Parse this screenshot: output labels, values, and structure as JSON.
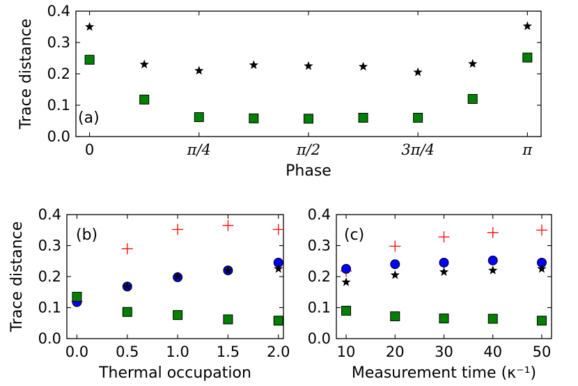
{
  "chart_data": [
    {
      "type": "scatter",
      "panel_label": "(a)",
      "xlabel": "Phase",
      "ylabel": "Trace distance",
      "ylim": [
        0.0,
        0.4
      ],
      "yticks": [
        "0.0",
        "0.1",
        "0.2",
        "0.3",
        "0.4"
      ],
      "xlim": [
        -0.098,
        3.24
      ],
      "xtick_values": [
        0,
        0.7854,
        1.5708,
        2.3562,
        3.1416
      ],
      "xticks": [
        "0",
        "π/4",
        "π/2",
        "3π/4",
        "π"
      ],
      "x": [
        0,
        0.3927,
        0.7854,
        1.1781,
        1.5708,
        1.9635,
        2.3562,
        2.7489,
        3.1416
      ],
      "series": [
        {
          "marker": "star",
          "color": "#000000",
          "values": [
            0.35,
            0.23,
            0.21,
            0.228,
            0.225,
            0.223,
            0.205,
            0.232,
            0.352
          ]
        },
        {
          "marker": "square",
          "color": "#008000",
          "values": [
            0.245,
            0.118,
            0.062,
            0.058,
            0.057,
            0.06,
            0.06,
            0.12,
            0.252
          ]
        }
      ],
      "grid": false
    },
    {
      "type": "scatter",
      "panel_label": "(b)",
      "xlabel": "Thermal occupation",
      "ylabel": "Trace distance",
      "ylim": [
        0.0,
        0.4
      ],
      "yticks": [
        "0.0",
        "0.1",
        "0.2",
        "0.3",
        "0.4"
      ],
      "xlim": [
        -0.1,
        2.05
      ],
      "xtick_values": [
        0.0,
        0.5,
        1.0,
        1.5,
        2.0
      ],
      "xticks": [
        "0.0",
        "0.5",
        "1.0",
        "1.5",
        "2.0"
      ],
      "x": [
        0.0,
        0.5,
        1.0,
        1.5,
        2.0
      ],
      "series": [
        {
          "marker": "plus",
          "color": "#ff0000",
          "values": [
            0.12,
            0.29,
            0.352,
            0.365,
            0.352
          ]
        },
        {
          "marker": "circle",
          "color": "#0000ff",
          "values": [
            0.118,
            0.168,
            0.198,
            0.22,
            0.245
          ]
        },
        {
          "marker": "star",
          "color": "#000000",
          "values": [
            0.13,
            0.168,
            0.2,
            0.22,
            0.225
          ]
        },
        {
          "marker": "square",
          "color": "#008000",
          "values": [
            0.135,
            0.086,
            0.076,
            0.062,
            0.058
          ]
        }
      ],
      "grid": false
    },
    {
      "type": "scatter",
      "panel_label": "(c)",
      "xlabel": "Measurement time (κ⁻¹)",
      "ylabel": "",
      "ylim": [
        0.0,
        0.4
      ],
      "yticks": [
        "0.0",
        "0.1",
        "0.2",
        "0.3",
        "0.4"
      ],
      "xlim": [
        8,
        52
      ],
      "xtick_values": [
        10,
        20,
        30,
        40,
        50
      ],
      "xticks": [
        "10",
        "20",
        "30",
        "40",
        "50"
      ],
      "x": [
        10,
        20,
        30,
        40,
        50
      ],
      "series": [
        {
          "marker": "plus",
          "color": "#ff0000",
          "values": [
            0.218,
            0.298,
            0.328,
            0.342,
            0.35
          ]
        },
        {
          "marker": "circle",
          "color": "#0000ff",
          "values": [
            0.225,
            0.24,
            0.245,
            0.252,
            0.245
          ]
        },
        {
          "marker": "star",
          "color": "#000000",
          "values": [
            0.182,
            0.205,
            0.215,
            0.22,
            0.225
          ]
        },
        {
          "marker": "square",
          "color": "#008000",
          "values": [
            0.09,
            0.072,
            0.065,
            0.064,
            0.058
          ]
        }
      ],
      "grid": false
    }
  ]
}
